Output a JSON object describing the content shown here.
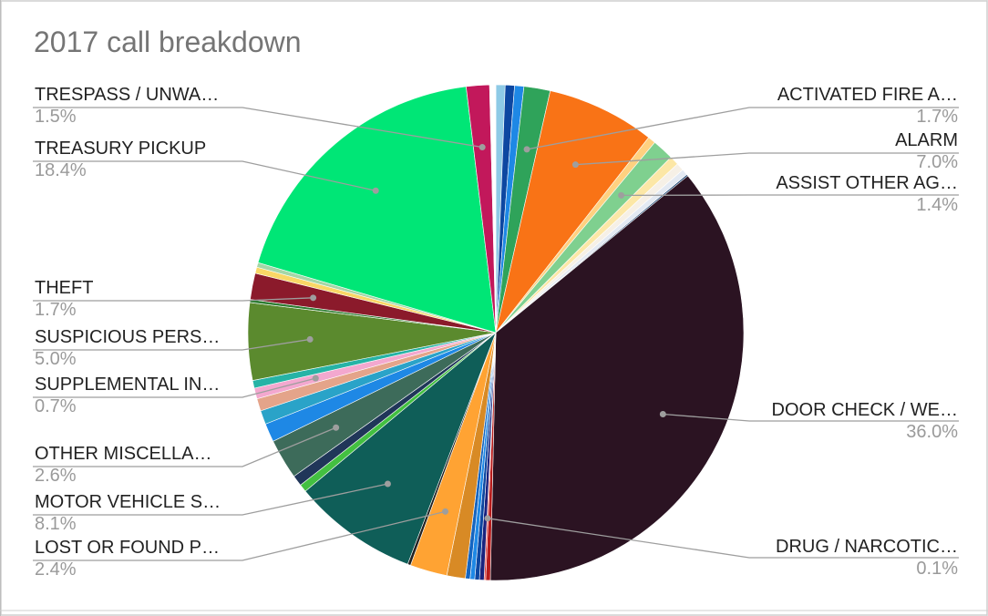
{
  "chart_data": {
    "type": "pie",
    "title": "2017 call breakdown",
    "slices": [
      {
        "label": "",
        "value": 0.6,
        "color": "#8ecae6"
      },
      {
        "label": "",
        "value": 0.6,
        "color": "#0d47a1"
      },
      {
        "label": "",
        "value": 0.6,
        "color": "#1e88e5"
      },
      {
        "label": "ACTIVATED FIRE A…",
        "value": 1.7,
        "color": "#2fa35a"
      },
      {
        "label": "ALARM",
        "value": 7.0,
        "color": "#f97316"
      },
      {
        "label": "",
        "value": 0.5,
        "color": "#ffd180"
      },
      {
        "label": "ASSIST OTHER AG…",
        "value": 1.4,
        "color": "#7fd08f"
      },
      {
        "label": "",
        "value": 0.6,
        "color": "#fce7a6"
      },
      {
        "label": "",
        "value": 0.5,
        "color": "#f6f0e6"
      },
      {
        "label": "",
        "value": 0.4,
        "color": "#e3e9f2"
      },
      {
        "label": "",
        "value": 0.1,
        "color": "#0d3a6b"
      },
      {
        "label": "DOOR CHECK / WE…",
        "value": 36.0,
        "color": "#2b1322"
      },
      {
        "label": "",
        "value": 0.3,
        "color": "#b71c1c"
      },
      {
        "label": "DRUG / NARCOTIC…",
        "value": 0.1,
        "color": "#e53935"
      },
      {
        "label": "",
        "value": 0.3,
        "color": "#1a237e"
      },
      {
        "label": "",
        "value": 0.3,
        "color": "#0d47a1"
      },
      {
        "label": "",
        "value": 0.3,
        "color": "#1e88e5"
      },
      {
        "label": "",
        "value": 0.3,
        "color": "#1565c0"
      },
      {
        "label": "",
        "value": 1.2,
        "color": "#d88a25"
      },
      {
        "label": "LOST OR FOUND P…",
        "value": 2.4,
        "color": "#ffa333"
      },
      {
        "label": "",
        "value": 0.2,
        "color": "#222222"
      },
      {
        "label": "MOTOR VEHICLE S…",
        "value": 8.1,
        "color": "#0f5e58"
      },
      {
        "label": "",
        "value": 0.5,
        "color": "#43c041"
      },
      {
        "label": "",
        "value": 0.7,
        "color": "#203659"
      },
      {
        "label": "OTHER MISCELLA…",
        "value": 2.6,
        "color": "#3d6b5a"
      },
      {
        "label": "",
        "value": 1.2,
        "color": "#1e88e5"
      },
      {
        "label": "",
        "value": 0.9,
        "color": "#2aa3c8"
      },
      {
        "label": "",
        "value": 0.8,
        "color": "#e4a48a"
      },
      {
        "label": "SUPPLEMENTAL IN…",
        "value": 0.7,
        "color": "#f3a8cf"
      },
      {
        "label": "",
        "value": 0.5,
        "color": "#26b3a6"
      },
      {
        "label": "SUSPICIOUS PERS…",
        "value": 5.0,
        "color": "#5b8a2e"
      },
      {
        "label": "",
        "value": 0.2,
        "color": "#2e7d32"
      },
      {
        "label": "THEFT",
        "value": 1.7,
        "color": "#8b1a2b"
      },
      {
        "label": "",
        "value": 0.4,
        "color": "#f9d766"
      },
      {
        "label": "",
        "value": 0.3,
        "color": "#a5d6a7"
      },
      {
        "label": "TREASURY PICKUP",
        "value": 18.4,
        "color": "#00e676"
      },
      {
        "label": "TRESPASS / UNWA…",
        "value": 1.5,
        "color": "#c2185b"
      },
      {
        "label": "",
        "value": 0.4,
        "color": "#ffffff"
      }
    ],
    "labels_shown": [
      {
        "name": "ACTIVATED FIRE A…",
        "pct": "1.7%"
      },
      {
        "name": "ALARM",
        "pct": "7.0%"
      },
      {
        "name": "ASSIST OTHER AG…",
        "pct": "1.4%"
      },
      {
        "name": "DOOR CHECK / WE…",
        "pct": "36.0%"
      },
      {
        "name": "DRUG / NARCOTIC…",
        "pct": "0.1%"
      },
      {
        "name": "TRESPASS / UNWA…",
        "pct": "1.5%"
      },
      {
        "name": "TREASURY PICKUP",
        "pct": "18.4%"
      },
      {
        "name": "THEFT",
        "pct": "1.7%"
      },
      {
        "name": "SUSPICIOUS PERS…",
        "pct": "5.0%"
      },
      {
        "name": "SUPPLEMENTAL IN…",
        "pct": "0.7%"
      },
      {
        "name": "OTHER MISCELLA…",
        "pct": "2.6%"
      },
      {
        "name": "MOTOR VEHICLE S…",
        "pct": "8.1%"
      },
      {
        "name": "LOST OR FOUND P…",
        "pct": "2.4%"
      }
    ]
  }
}
